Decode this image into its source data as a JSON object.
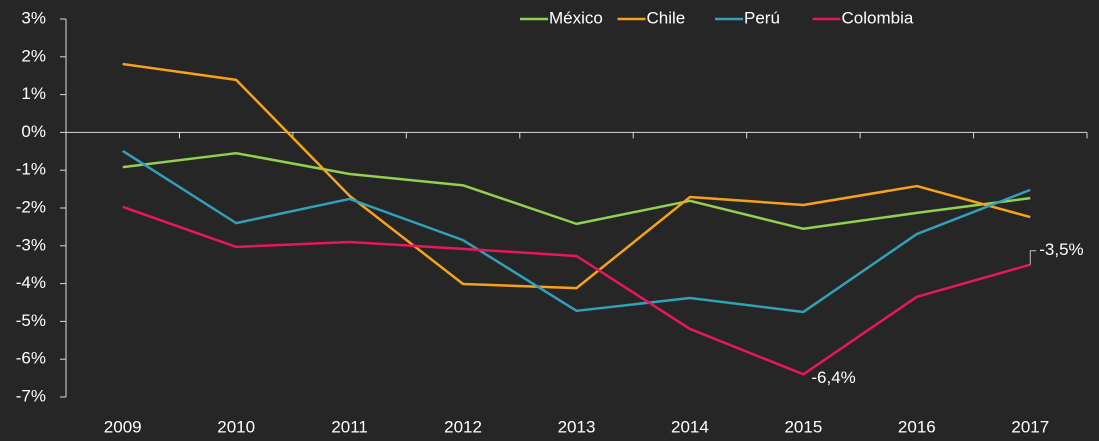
{
  "chart_data": {
    "type": "line",
    "categories": [
      "2009",
      "2010",
      "2011",
      "2012",
      "2013",
      "2014",
      "2015",
      "2016",
      "2017"
    ],
    "series": [
      {
        "name": "México",
        "color": "#92d050",
        "values": [
          -0.92,
          -0.55,
          -1.1,
          -1.4,
          -2.42,
          -1.81,
          -2.55,
          -2.13,
          -1.74
        ]
      },
      {
        "name": "Chile",
        "color": "#f7a21b",
        "values": [
          1.81,
          1.39,
          -1.68,
          -4.01,
          -4.12,
          -1.71,
          -1.92,
          -1.42,
          -2.24
        ]
      },
      {
        "name": "Perú",
        "color": "#31a0b8",
        "values": [
          -0.49,
          -2.4,
          -1.76,
          -2.85,
          -4.72,
          -4.38,
          -4.75,
          -2.69,
          -1.52
        ]
      },
      {
        "name": "Colombia",
        "color": "#e8175d",
        "values": [
          -1.97,
          -3.03,
          -2.9,
          -3.08,
          -3.27,
          -5.2,
          -6.4,
          -4.35,
          -3.5
        ],
        "value_labels": [
          null,
          null,
          null,
          null,
          null,
          null,
          "-6,4%",
          null,
          "-3,5%"
        ],
        "label_color": "#92d050"
      }
    ],
    "ylim": [
      -7,
      3
    ],
    "yticks": [
      {
        "value": -7,
        "label": "-7%"
      },
      {
        "value": -6,
        "label": "-6%"
      },
      {
        "value": -5,
        "label": "-5%"
      },
      {
        "value": -4,
        "label": "-4%"
      },
      {
        "value": -3,
        "label": "-3%"
      },
      {
        "value": -2,
        "label": "-2%"
      },
      {
        "value": -1,
        "label": "-1%"
      },
      {
        "value": 0,
        "label": "0%"
      },
      {
        "value": 1,
        "label": "1%"
      },
      {
        "value": 2,
        "label": "2%"
      },
      {
        "value": 3,
        "label": "3%"
      }
    ],
    "grid": false,
    "legend": "top-right"
  }
}
